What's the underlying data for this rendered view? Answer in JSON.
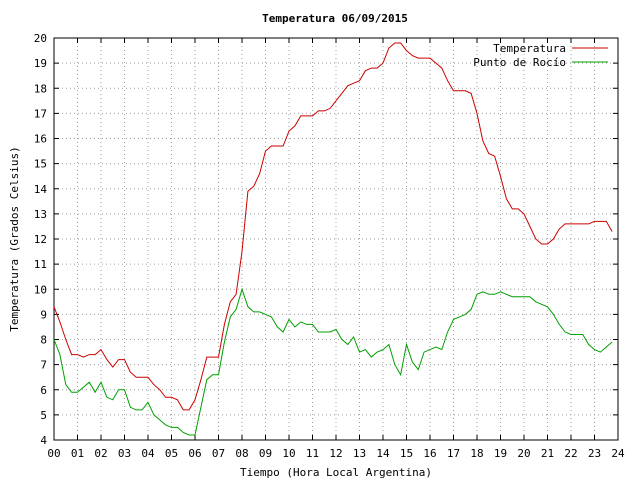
{
  "chart_data": {
    "type": "line",
    "title": "Temperatura 06/09/2015",
    "xlabel": "Tiempo (Hora Local Argentina)",
    "ylabel": "Temperatura (Grados Celsius)",
    "xlim": [
      0,
      24
    ],
    "ylim": [
      4,
      20
    ],
    "x_ticks": [
      "00",
      "01",
      "02",
      "03",
      "04",
      "05",
      "06",
      "07",
      "08",
      "09",
      "10",
      "11",
      "12",
      "13",
      "14",
      "15",
      "16",
      "17",
      "18",
      "19",
      "20",
      "21",
      "22",
      "23",
      "24"
    ],
    "y_ticks": [
      "4",
      "5",
      "6",
      "7",
      "8",
      "9",
      "10",
      "11",
      "12",
      "13",
      "14",
      "15",
      "16",
      "17",
      "18",
      "19",
      "20"
    ],
    "grid": true,
    "legend_position": "top-right",
    "series": [
      {
        "name": "Temperatura",
        "color": "#cc0000",
        "x": [
          0,
          0.25,
          0.5,
          0.75,
          1,
          1.25,
          1.5,
          1.75,
          2,
          2.25,
          2.5,
          2.75,
          3,
          3.25,
          3.5,
          3.75,
          4,
          4.25,
          4.5,
          4.75,
          5,
          5.25,
          5.5,
          5.75,
          6,
          6.25,
          6.5,
          6.75,
          7,
          7.25,
          7.5,
          7.75,
          8,
          8.25,
          8.5,
          8.75,
          9,
          9.25,
          9.5,
          9.75,
          10,
          10.25,
          10.5,
          10.75,
          11,
          11.25,
          11.5,
          11.75,
          12,
          12.25,
          12.5,
          12.75,
          13,
          13.25,
          13.5,
          13.75,
          14,
          14.25,
          14.5,
          14.75,
          15,
          15.25,
          15.5,
          15.75,
          16,
          16.25,
          16.5,
          16.75,
          17,
          17.25,
          17.5,
          17.75,
          18,
          18.25,
          18.5,
          18.75,
          19,
          19.25,
          19.5,
          19.75,
          20,
          20.25,
          20.5,
          20.75,
          21,
          21.25,
          21.5,
          21.75,
          22,
          22.25,
          22.5,
          22.75,
          23,
          23.25,
          23.5,
          23.75
        ],
        "y": [
          9.3,
          8.7,
          8.0,
          7.4,
          7.4,
          7.3,
          7.4,
          7.4,
          7.6,
          7.2,
          6.9,
          7.2,
          7.2,
          6.7,
          6.5,
          6.5,
          6.5,
          6.2,
          6.0,
          5.7,
          5.7,
          5.6,
          5.2,
          5.2,
          5.6,
          6.4,
          7.3,
          7.3,
          7.3,
          8.6,
          9.5,
          9.8,
          11.5,
          13.9,
          14.1,
          14.6,
          15.5,
          15.7,
          15.7,
          15.7,
          16.3,
          16.5,
          16.9,
          16.9,
          16.9,
          17.1,
          17.1,
          17.2,
          17.5,
          17.8,
          18.1,
          18.2,
          18.3,
          18.7,
          18.8,
          18.8,
          19.0,
          19.6,
          19.8,
          19.8,
          19.5,
          19.3,
          19.2,
          19.2,
          19.2,
          19.0,
          18.8,
          18.3,
          17.9,
          17.9,
          17.9,
          17.8,
          17.0,
          15.9,
          15.4,
          15.3,
          14.5,
          13.6,
          13.2,
          13.2,
          13.0,
          12.5,
          12.0,
          11.8,
          11.8,
          12.0,
          12.4,
          12.6,
          12.6,
          12.6,
          12.6,
          12.6,
          12.7,
          12.7,
          12.7,
          12.3
        ]
      },
      {
        "name": "Punto de Rocío",
        "color": "#00a000",
        "x": [
          0,
          0.25,
          0.5,
          0.75,
          1,
          1.25,
          1.5,
          1.75,
          2,
          2.25,
          2.5,
          2.75,
          3,
          3.25,
          3.5,
          3.75,
          4,
          4.25,
          4.5,
          4.75,
          5,
          5.25,
          5.5,
          5.75,
          6,
          6.25,
          6.5,
          6.75,
          7,
          7.25,
          7.5,
          7.75,
          8,
          8.25,
          8.5,
          8.75,
          9,
          9.25,
          9.5,
          9.75,
          10,
          10.25,
          10.5,
          10.75,
          11,
          11.25,
          11.5,
          11.75,
          12,
          12.25,
          12.5,
          12.75,
          13,
          13.25,
          13.5,
          13.75,
          14,
          14.25,
          14.5,
          14.75,
          15,
          15.25,
          15.5,
          15.75,
          16,
          16.25,
          16.5,
          16.75,
          17,
          17.25,
          17.5,
          17.75,
          18,
          18.25,
          18.5,
          18.75,
          19,
          19.25,
          19.5,
          19.75,
          20,
          20.25,
          20.5,
          20.75,
          21,
          21.25,
          21.5,
          21.75,
          22,
          22.25,
          22.5,
          22.75,
          23,
          23.25,
          23.5,
          23.75
        ],
        "y": [
          8.0,
          7.4,
          6.2,
          5.9,
          5.9,
          6.1,
          6.3,
          5.9,
          6.3,
          5.7,
          5.6,
          6.0,
          6.0,
          5.3,
          5.2,
          5.2,
          5.5,
          5.0,
          4.8,
          4.6,
          4.5,
          4.5,
          4.3,
          4.2,
          4.2,
          5.3,
          6.4,
          6.6,
          6.6,
          7.9,
          8.9,
          9.2,
          10.0,
          9.3,
          9.1,
          9.1,
          9.0,
          8.9,
          8.5,
          8.3,
          8.8,
          8.5,
          8.7,
          8.6,
          8.6,
          8.3,
          8.3,
          8.3,
          8.4,
          8.0,
          7.8,
          8.1,
          7.5,
          7.6,
          7.3,
          7.5,
          7.6,
          7.8,
          7.0,
          6.6,
          7.8,
          7.1,
          6.8,
          7.5,
          7.6,
          7.7,
          7.6,
          8.3,
          8.8,
          8.9,
          9.0,
          9.2,
          9.8,
          9.9,
          9.8,
          9.8,
          9.9,
          9.8,
          9.7,
          9.7,
          9.7,
          9.7,
          9.5,
          9.4,
          9.3,
          9.0,
          8.6,
          8.3,
          8.2,
          8.2,
          8.2,
          7.8,
          7.6,
          7.5,
          7.7,
          7.9
        ]
      }
    ]
  }
}
